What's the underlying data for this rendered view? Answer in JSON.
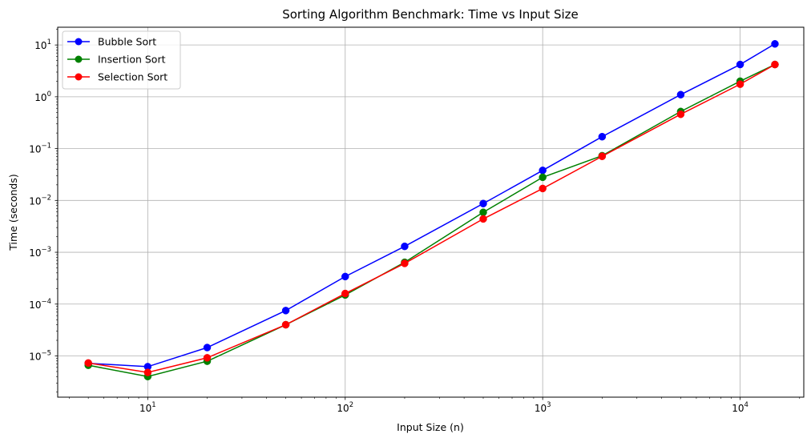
{
  "chart_data": {
    "type": "line",
    "title": "Sorting Algorithm Benchmark: Time vs Input Size",
    "xlabel": "Input Size (n)",
    "ylabel": "Time (seconds)",
    "xscale": "log",
    "yscale": "log",
    "xlim": [
      3.5,
      21000
    ],
    "ylim": [
      1.6e-06,
      22
    ],
    "x_ticks": [
      {
        "value": 10,
        "base": "10",
        "exp": "1"
      },
      {
        "value": 100,
        "base": "10",
        "exp": "2"
      },
      {
        "value": 1000,
        "base": "10",
        "exp": "3"
      },
      {
        "value": 10000,
        "base": "10",
        "exp": "4"
      }
    ],
    "y_ticks": [
      {
        "value": 1e-05,
        "base": "10",
        "exp": "−5"
      },
      {
        "value": 0.0001,
        "base": "10",
        "exp": "−4"
      },
      {
        "value": 0.001,
        "base": "10",
        "exp": "−3"
      },
      {
        "value": 0.01,
        "base": "10",
        "exp": "−2"
      },
      {
        "value": 0.1,
        "base": "10",
        "exp": "−1"
      },
      {
        "value": 1,
        "base": "10",
        "exp": "0"
      },
      {
        "value": 10,
        "base": "10",
        "exp": "1"
      }
    ],
    "grid": true,
    "legend_position": "top-left",
    "x": [
      5,
      10,
      20,
      50,
      100,
      200,
      500,
      1000,
      2000,
      5000,
      10000,
      15000
    ],
    "series": [
      {
        "name": "Bubble Sort",
        "color": "#0000ff",
        "values": [
          7.2e-06,
          6.2e-06,
          1.45e-05,
          7.5e-05,
          0.00034,
          0.0013,
          0.0087,
          0.038,
          0.17,
          1.1,
          4.2,
          10.5
        ]
      },
      {
        "name": "Insertion Sort",
        "color": "#008000",
        "values": [
          6.6e-06,
          4e-06,
          7.9e-06,
          4e-05,
          0.00015,
          0.00064,
          0.0059,
          0.028,
          0.073,
          0.52,
          2.0,
          4.2
        ]
      },
      {
        "name": "Selection Sort",
        "color": "#ff0000",
        "values": [
          7.3e-06,
          4.8e-06,
          9.2e-06,
          4e-05,
          0.00016,
          0.00061,
          0.0044,
          0.017,
          0.071,
          0.46,
          1.75,
          4.2
        ]
      }
    ]
  }
}
